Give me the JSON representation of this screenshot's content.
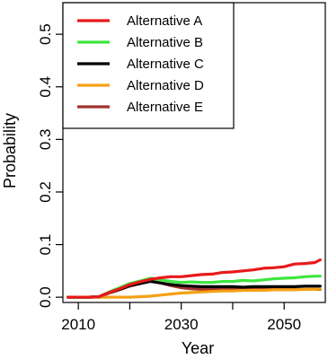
{
  "chart_data": {
    "type": "line",
    "xlabel": "Year",
    "ylabel": "Probability",
    "xlim": [
      2007,
      2058
    ],
    "ylim": [
      -0.01,
      0.56
    ],
    "x_ticks": [
      2010,
      2030,
      2050
    ],
    "x_minor_ticks": [
      2020,
      2040
    ],
    "y_ticks": [
      0.0,
      0.1,
      0.2,
      0.3,
      0.4,
      0.5
    ],
    "x_tick_labels": [
      "2010",
      "2030",
      "2050"
    ],
    "y_tick_labels": [
      "0.0",
      "0.1",
      "0.2",
      "0.3",
      "0.4",
      "0.5"
    ],
    "grid": false,
    "legend": "top-left",
    "x": [
      2008,
      2010,
      2012,
      2014,
      2016,
      2018,
      2020,
      2022,
      2024,
      2026,
      2028,
      2030,
      2032,
      2034,
      2036,
      2038,
      2040,
      2042,
      2044,
      2046,
      2048,
      2050,
      2052,
      2054,
      2056,
      2057
    ],
    "series": [
      {
        "name": "Alternative A",
        "color": "#e8191b",
        "values": [
          0.0,
          0.0,
          0.0,
          0.001,
          0.009,
          0.016,
          0.024,
          0.029,
          0.034,
          0.037,
          0.039,
          0.039,
          0.041,
          0.043,
          0.044,
          0.047,
          0.048,
          0.05,
          0.052,
          0.055,
          0.056,
          0.058,
          0.063,
          0.064,
          0.066,
          0.071
        ]
      },
      {
        "name": "Alternative B",
        "color": "#3ee63e",
        "values": [
          0.0,
          0.0,
          0.0,
          0.001,
          0.01,
          0.018,
          0.026,
          0.031,
          0.036,
          0.033,
          0.03,
          0.028,
          0.029,
          0.028,
          0.028,
          0.03,
          0.03,
          0.032,
          0.031,
          0.033,
          0.035,
          0.036,
          0.037,
          0.039,
          0.04,
          0.04
        ]
      },
      {
        "name": "Alternative C",
        "color": "#000000",
        "values": [
          0.0,
          0.0,
          0.0,
          0.001,
          0.009,
          0.015,
          0.022,
          0.026,
          0.03,
          0.027,
          0.024,
          0.022,
          0.021,
          0.02,
          0.02,
          0.02,
          0.02,
          0.019,
          0.02,
          0.02,
          0.02,
          0.02,
          0.02,
          0.021,
          0.021,
          0.021
        ]
      },
      {
        "name": "Alternative D",
        "color": "#f5a015",
        "values": [
          0.0,
          0.0,
          0.0,
          0.0,
          0.0,
          0.0,
          0.0,
          0.001,
          0.002,
          0.004,
          0.006,
          0.008,
          0.009,
          0.01,
          0.011,
          0.012,
          0.012,
          0.013,
          0.013,
          0.013,
          0.014,
          0.014,
          0.014,
          0.015,
          0.015,
          0.016
        ]
      },
      {
        "name": "Alternative E",
        "color": "#a0332d",
        "values": [
          0.0,
          0.0,
          0.0,
          0.001,
          0.008,
          0.014,
          0.021,
          0.026,
          0.031,
          0.027,
          0.022,
          0.018,
          0.016,
          0.015,
          0.015,
          0.015,
          0.015,
          0.015,
          0.016,
          0.016,
          0.016,
          0.016,
          0.015,
          0.015,
          0.015,
          0.015
        ]
      }
    ]
  }
}
